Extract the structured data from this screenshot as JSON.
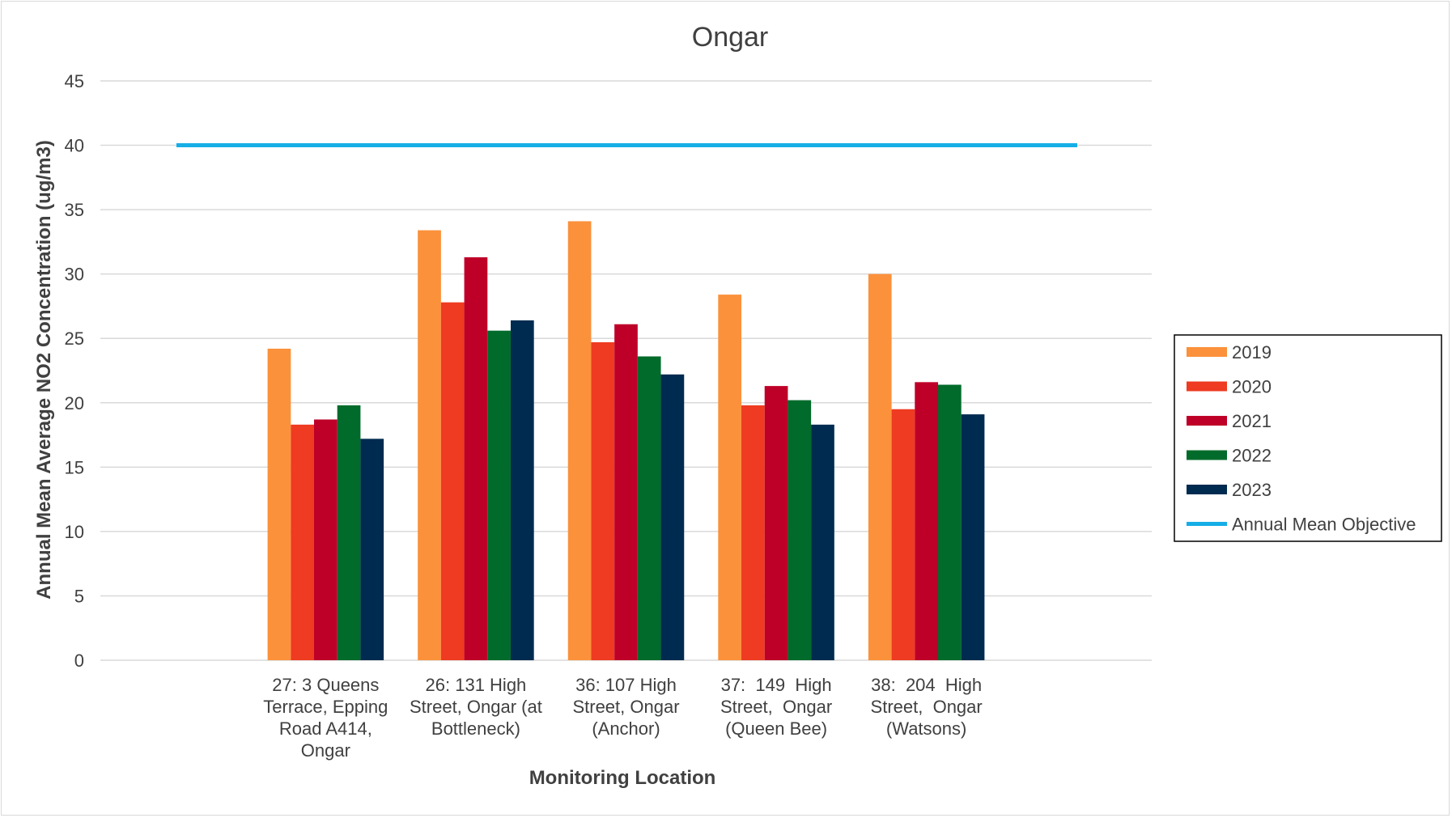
{
  "chart_data": {
    "type": "bar",
    "title": "Ongar",
    "xlabel": "Monitoring Location",
    "ylabel": "Annual Mean Average NO2 Concentration (ug/m3)",
    "ylim": [
      0,
      45
    ],
    "yticks": [
      0,
      5,
      10,
      15,
      20,
      25,
      30,
      35,
      40,
      45
    ],
    "grid": true,
    "legend_position": "right",
    "categories": [
      [
        "27: 3 Queens",
        "Terrace, Epping",
        "Road A414,",
        "Ongar"
      ],
      [
        "26: 131 High",
        "Street, Ongar (at",
        "Bottleneck)"
      ],
      [
        "36: 107 High",
        "Street, Ongar",
        "(Anchor)"
      ],
      [
        "37:  149  High",
        "Street,  Ongar",
        "(Queen Bee)"
      ],
      [
        "38:  204  High",
        "Street,  Ongar",
        "(Watsons)"
      ]
    ],
    "series": [
      {
        "name": "2019",
        "color": "#FB913B",
        "values": [
          24.2,
          33.4,
          34.1,
          28.4,
          30.0
        ]
      },
      {
        "name": "2020",
        "color": "#EE3B21",
        "values": [
          18.3,
          27.8,
          24.7,
          19.8,
          19.5
        ]
      },
      {
        "name": "2021",
        "color": "#BE0028",
        "values": [
          18.7,
          31.3,
          26.1,
          21.3,
          21.6
        ]
      },
      {
        "name": "2022",
        "color": "#016B2B",
        "values": [
          19.8,
          25.6,
          23.6,
          20.2,
          21.4
        ]
      },
      {
        "name": "2023",
        "color": "#002B50",
        "values": [
          17.2,
          26.4,
          22.2,
          18.3,
          19.1
        ]
      }
    ],
    "objective": {
      "name": "Annual Mean Objective",
      "value": 40,
      "color": "#16AEE6"
    }
  }
}
